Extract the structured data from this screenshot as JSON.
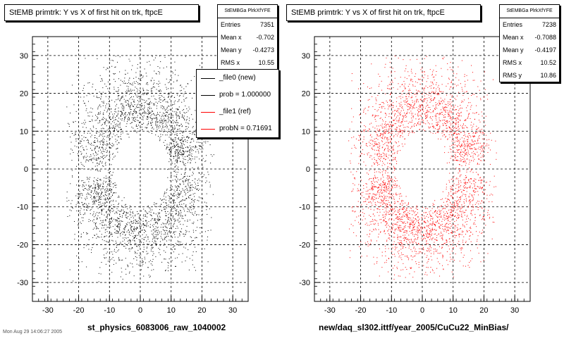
{
  "chart_data": [
    {
      "type": "scatter",
      "title": "StEMB primtrk: Y vs X of first hit on trk, ftpcE",
      "xlim": [
        -35,
        35
      ],
      "ylim": [
        -35,
        35
      ],
      "x_ticks": [
        -30,
        -20,
        -10,
        0,
        10,
        20,
        30
      ],
      "y_ticks": [
        -30,
        -20,
        -10,
        0,
        10,
        20,
        30
      ],
      "grid": true,
      "marker_color": "#000000",
      "stats": {
        "header": "StEMBGa PlrkXfYFE",
        "rows": [
          {
            "label": "Entries",
            "value": "7351"
          },
          {
            "label": "Mean x",
            "value": "-0.702"
          },
          {
            "label": "Mean y",
            "value": "-0.4273"
          },
          {
            "label": "RMS x",
            "value": "10.55"
          }
        ]
      },
      "legend": {
        "placement": "top-right",
        "entries": [
          {
            "text": "_file0 (new)",
            "color": "#000000"
          },
          {
            "text": "prob = 1.000000",
            "color": "#000000"
          },
          {
            "text": "_file1 (ref)",
            "color": "#ff0000"
          },
          {
            "text": "probN = 0.71691",
            "color": "#ff0000"
          }
        ]
      },
      "xlabel": "st_physics_6083006_raw_1040002",
      "distribution": {
        "inner_radius": 8,
        "outer_radius_x": 22,
        "outer_radius_y": 28
      }
    },
    {
      "type": "scatter",
      "title": "StEMB primtrk: Y vs X of first hit on trk, ftpcE",
      "xlim": [
        -35,
        35
      ],
      "ylim": [
        -35,
        35
      ],
      "x_ticks": [
        -30,
        -20,
        -10,
        0,
        10,
        20,
        30
      ],
      "y_ticks": [
        -30,
        -20,
        -10,
        0,
        10,
        20,
        30
      ],
      "grid": true,
      "marker_color": "#ff0000",
      "stats": {
        "header": "StEMBGa PlrkXfYFE",
        "rows": [
          {
            "label": "Entries",
            "value": "7238"
          },
          {
            "label": "Mean x",
            "value": "-0.7088"
          },
          {
            "label": "Mean y",
            "value": "-0.4197"
          },
          {
            "label": "RMS x",
            "value": "10.52"
          },
          {
            "label": "RMS y",
            "value": "10.86"
          }
        ]
      },
      "xlabel": "new/daq_sl302.ittf/year_2005/CuCu22_MinBias/",
      "distribution": {
        "inner_radius": 8,
        "outer_radius_x": 22,
        "outer_radius_y": 28
      }
    }
  ],
  "footer": "Mon Aug 29 14:06:27 2005"
}
